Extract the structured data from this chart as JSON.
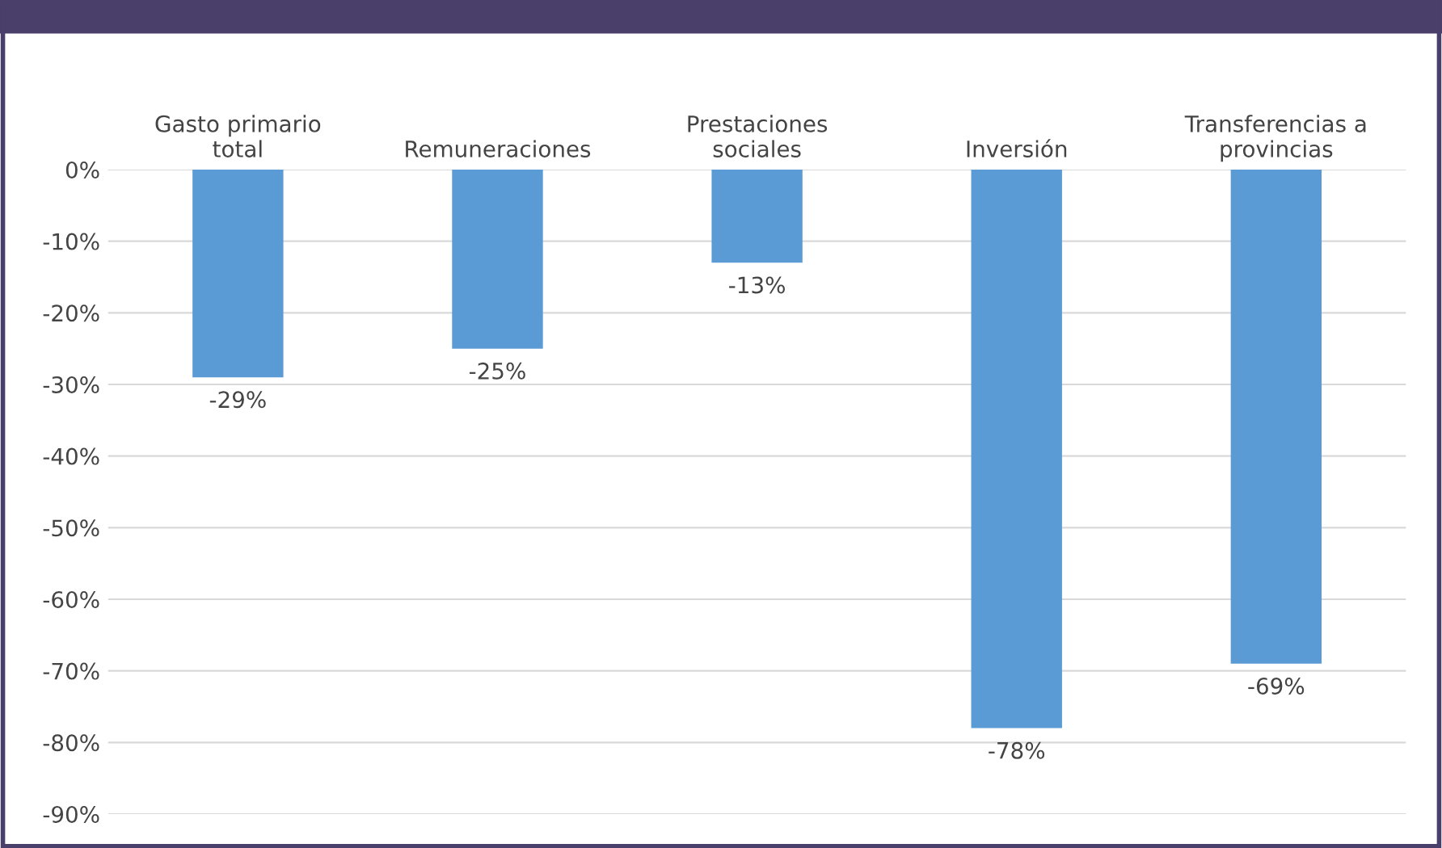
{
  "chart_data": {
    "type": "bar",
    "categories": [
      "Gasto primario\ntotal",
      "Remuneraciones",
      "Prestaciones\nsociales",
      "Inversión",
      "Transferencias a\nprovincias"
    ],
    "values": [
      -29,
      -25,
      -13,
      -78,
      -69
    ],
    "value_labels": [
      "-29%",
      "-25%",
      "-13%",
      "-78%",
      "-69%"
    ],
    "color": "#5b9bd5",
    "ylim": [
      -90,
      0
    ],
    "yticks": [
      {
        "value": 0,
        "label": "0%"
      },
      {
        "value": -10,
        "label": "-10%"
      },
      {
        "value": -20,
        "label": "-20%"
      },
      {
        "value": -30,
        "label": "-30%"
      },
      {
        "value": -40,
        "label": "-40%"
      },
      {
        "value": -50,
        "label": "-50%"
      },
      {
        "value": -60,
        "label": "-60%"
      },
      {
        "value": -70,
        "label": "-70%"
      },
      {
        "value": -80,
        "label": "-80%"
      },
      {
        "value": -90,
        "label": "-90%"
      }
    ],
    "grid": "y"
  }
}
